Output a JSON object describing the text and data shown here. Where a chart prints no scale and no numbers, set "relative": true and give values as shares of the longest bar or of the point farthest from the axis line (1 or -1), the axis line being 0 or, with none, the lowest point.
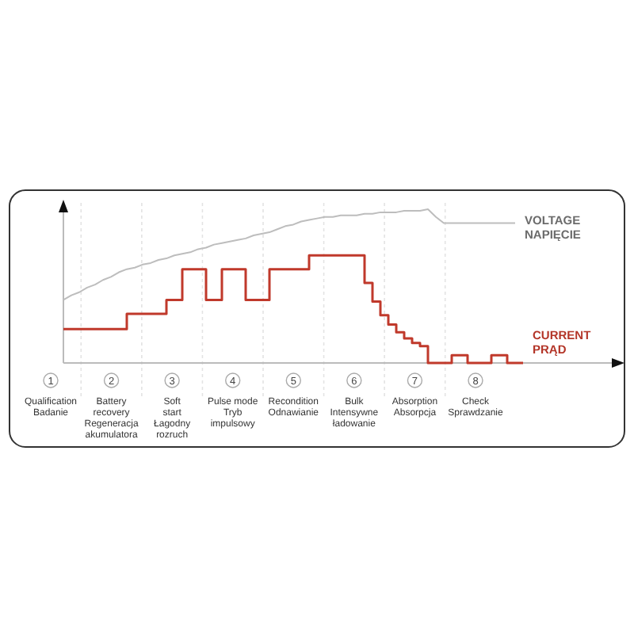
{
  "chart_data": {
    "type": "line",
    "relative": true,
    "categories": [
      null,
      null,
      null,
      null,
      null,
      null,
      null,
      null,
      null,
      null,
      null,
      null,
      null,
      null,
      null,
      null,
      null,
      null,
      null,
      null,
      null,
      null,
      null,
      null,
      null,
      null,
      null,
      null,
      null,
      null,
      null,
      null,
      null,
      null,
      null,
      null,
      null,
      null,
      null,
      null,
      null,
      null,
      null,
      null,
      null,
      null,
      null,
      null,
      null,
      null,
      null,
      null,
      null,
      null,
      null,
      null,
      null,
      null,
      null,
      null,
      null,
      null,
      null,
      null,
      null,
      null,
      null,
      null,
      null,
      null
    ],
    "series": [
      {
        "name": "VOLTAGE\nNAPIĘCIE",
        "type": "line",
        "color": "#bdbdbd",
        "values": [
          0.41,
          0.44,
          0.46,
          0.49,
          0.51,
          0.54,
          0.56,
          0.59,
          0.61,
          0.62,
          0.64,
          0.65,
          0.67,
          0.68,
          0.7,
          0.71,
          0.72,
          0.74,
          0.75,
          0.77,
          0.78,
          0.79,
          0.8,
          0.81,
          0.83,
          0.84,
          0.85,
          0.87,
          0.89,
          0.9,
          0.92,
          0.93,
          0.94,
          0.95,
          0.95,
          0.96,
          0.96,
          0.96,
          0.97,
          0.97,
          0.98,
          0.98,
          0.98,
          0.99,
          0.99,
          0.99,
          1,
          0.95,
          0.91,
          0.91,
          0.91,
          0.91,
          0.91,
          0.91,
          0.91,
          0.91,
          0.91,
          0.91,
          null,
          null,
          null,
          null,
          null,
          null,
          null,
          null,
          null,
          null,
          null,
          null
        ]
      },
      {
        "name": "CURRENT\nPRĄD",
        "type": "step",
        "color": "#c0392b",
        "values": [
          0.22,
          0.22,
          0.22,
          0.22,
          0.22,
          0.22,
          0.22,
          0.22,
          0.32,
          0.32,
          0.32,
          0.32,
          0.32,
          0.41,
          0.41,
          0.61,
          0.61,
          0.61,
          0.41,
          0.41,
          0.61,
          0.61,
          0.61,
          0.41,
          0.41,
          0.41,
          0.61,
          0.61,
          0.61,
          0.61,
          0.61,
          0.7,
          0.7,
          0.7,
          0.7,
          0.7,
          0.7,
          0.7,
          0.52,
          0.4,
          0.31,
          0.25,
          0.2,
          0.16,
          0.13,
          0.11,
          0,
          0,
          0,
          0.05,
          0.05,
          0,
          0,
          0,
          0.05,
          0.05,
          0,
          0,
          0,
          null,
          null,
          null,
          null,
          null,
          null,
          null,
          null,
          null,
          null,
          null
        ]
      }
    ],
    "grid": "x",
    "annotations": [
      "1\nQualification\n\nBadanie",
      "2\nBattery\nrecovery\nRegeneracja\nakumulatora",
      "3\nSoft\nstart\nŁagodny\nrozruch",
      "4\nPulse mode\n\nTryb\nimpulsowy",
      "5\nRecondition\nOdnawianie",
      "6\nBulk\n\nIntensywne\nładowanie",
      "7\nAbsorption\n\nAbsorpcja",
      "8\nCheck\n\nSprawdzanie"
    ]
  }
}
